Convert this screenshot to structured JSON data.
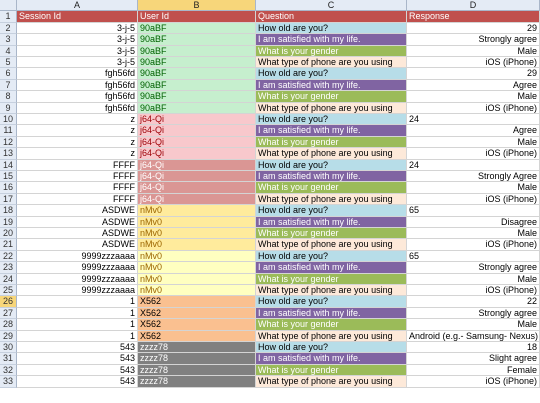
{
  "columns": [
    "A",
    "B",
    "C",
    "D"
  ],
  "headers": [
    "Session Id",
    "User Id",
    "Question",
    "Response"
  ],
  "colors": {
    "header": "#c0504d",
    "q_age": "#b7dde8",
    "q_satisfied": "#8064a2",
    "q_gender": "#9bbb59",
    "q_phone": "#fde9d9",
    "u_90aBF": "#c6efce",
    "u_j64Qi_light": "#f8c8cc",
    "u_j64Qi_dark": "#da9694",
    "u_nMv0": "#ffeb9c",
    "u_9999": "#ffffc0",
    "u_X562": "#fac090",
    "u_zzzz78": "#808080"
  },
  "rows": [
    {
      "n": "2",
      "a": "3-j-5",
      "b": "90aBF",
      "bc": "u_90aBF",
      "c": "How old are you?",
      "cc": "q_age",
      "d": "29",
      "dr": true
    },
    {
      "n": "3",
      "a": "3-j-5",
      "b": "90aBF",
      "bc": "u_90aBF",
      "c": "I am satisfied with my life.",
      "cc": "q_satisfied",
      "d": "Strongly agree",
      "dr": true
    },
    {
      "n": "4",
      "a": "3-j-5",
      "b": "90aBF",
      "bc": "u_90aBF",
      "c": "What is your gender",
      "cc": "q_gender",
      "d": "Male",
      "dr": true
    },
    {
      "n": "5",
      "a": "3-j-5",
      "b": "90aBF",
      "bc": "u_90aBF",
      "c": "What type of phone are you using",
      "cc": "q_phone",
      "d": "iOS (iPhone)",
      "dr": true
    },
    {
      "n": "6",
      "a": "fgh56fd",
      "b": "90aBF",
      "bc": "u_90aBF",
      "c": "How old are you?",
      "cc": "q_age",
      "d": "29",
      "dr": true
    },
    {
      "n": "7",
      "a": "fgh56fd",
      "b": "90aBF",
      "bc": "u_90aBF",
      "c": "I am satisfied with my life.",
      "cc": "q_satisfied",
      "d": "Agree",
      "dr": true
    },
    {
      "n": "8",
      "a": "fgh56fd",
      "b": "90aBF",
      "bc": "u_90aBF",
      "c": "What is your gender",
      "cc": "q_gender",
      "d": "Male",
      "dr": true
    },
    {
      "n": "9",
      "a": "fgh56fd",
      "b": "90aBF",
      "bc": "u_90aBF",
      "c": "What type of phone are you using",
      "cc": "q_phone",
      "d": "iOS (iPhone)",
      "dr": true
    },
    {
      "n": "10",
      "a": "z",
      "b": "j64-Qi",
      "bc": "u_j64Qi_light",
      "c": "How old are you?",
      "cc": "q_age",
      "d": "24",
      "dr": false
    },
    {
      "n": "11",
      "a": "z",
      "b": "j64-Qi",
      "bc": "u_j64Qi_light",
      "c": "I am satisfied with my life.",
      "cc": "q_satisfied",
      "d": "Agree",
      "dr": true
    },
    {
      "n": "12",
      "a": "z",
      "b": "j64-Qi",
      "bc": "u_j64Qi_light",
      "c": "What is your gender",
      "cc": "q_gender",
      "d": "Male",
      "dr": true
    },
    {
      "n": "13",
      "a": "z",
      "b": "j64-Qi",
      "bc": "u_j64Qi_light",
      "c": "What type of phone are you using",
      "cc": "q_phone",
      "d": "iOS (iPhone)",
      "dr": true
    },
    {
      "n": "14",
      "a": "FFFF",
      "b": "j64-Qi",
      "bc": "u_j64Qi_dark",
      "c": "How old are you?",
      "cc": "q_age",
      "d": "24",
      "dr": false
    },
    {
      "n": "15",
      "a": "FFFF",
      "b": "j64-Qi",
      "bc": "u_j64Qi_dark",
      "c": "I am satisfied with my life.",
      "cc": "q_satisfied",
      "d": "Strongly Agree",
      "dr": true
    },
    {
      "n": "16",
      "a": "FFFF",
      "b": "j64-Qi",
      "bc": "u_j64Qi_dark",
      "c": "What is your gender",
      "cc": "q_gender",
      "d": "Male",
      "dr": true
    },
    {
      "n": "17",
      "a": "FFFF",
      "b": "j64-Qi",
      "bc": "u_j64Qi_dark",
      "c": "What type of phone are you using",
      "cc": "q_phone",
      "d": "iOS (iPhone)",
      "dr": true
    },
    {
      "n": "18",
      "a": "ASDWE",
      "b": "nMv0",
      "bc": "u_nMv0",
      "c": "How old are you?",
      "cc": "q_age",
      "d": "65",
      "dr": false
    },
    {
      "n": "19",
      "a": "ASDWE",
      "b": "nMv0",
      "bc": "u_nMv0",
      "c": "I am satisfied with my life.",
      "cc": "q_satisfied",
      "d": "Disagree",
      "dr": true
    },
    {
      "n": "20",
      "a": "ASDWE",
      "b": "nMv0",
      "bc": "u_nMv0",
      "c": "What is your gender",
      "cc": "q_gender",
      "d": "Male",
      "dr": true
    },
    {
      "n": "21",
      "a": "ASDWE",
      "b": "nMv0",
      "bc": "u_nMv0",
      "c": "What type of phone are you using",
      "cc": "q_phone",
      "d": "iOS (iPhone)",
      "dr": true
    },
    {
      "n": "22",
      "a": "9999zzzaaaa",
      "b": "nMv0",
      "bc": "u_9999",
      "c": "How old are you?",
      "cc": "q_age",
      "d": "65",
      "dr": false
    },
    {
      "n": "23",
      "a": "9999zzzaaaa",
      "b": "nMv0",
      "bc": "u_9999",
      "c": "I am satisfied with my life.",
      "cc": "q_satisfied",
      "d": "Strongly agree",
      "dr": true
    },
    {
      "n": "24",
      "a": "9999zzzaaaa",
      "b": "nMv0",
      "bc": "u_9999",
      "c": "What is your gender",
      "cc": "q_gender",
      "d": "Male",
      "dr": true
    },
    {
      "n": "25",
      "a": "9999zzzaaaa",
      "b": "nMv0",
      "bc": "u_9999",
      "c": "What type of phone are you using",
      "cc": "q_phone",
      "d": "iOS (iPhone)",
      "dr": true
    },
    {
      "n": "26",
      "a": "1",
      "b": "X562",
      "bc": "u_X562",
      "c": "How old are you?",
      "cc": "q_age",
      "d": "22",
      "dr": true,
      "sel": true
    },
    {
      "n": "27",
      "a": "1",
      "b": "X562",
      "bc": "u_X562",
      "c": "I am satisfied with my life.",
      "cc": "q_satisfied",
      "d": "Strongly agree",
      "dr": true
    },
    {
      "n": "28",
      "a": "1",
      "b": "X562",
      "bc": "u_X562",
      "c": "What is your gender",
      "cc": "q_gender",
      "d": "Male",
      "dr": true
    },
    {
      "n": "29",
      "a": "1",
      "b": "X562",
      "bc": "u_X562",
      "c": "What type of phone are you using",
      "cc": "q_phone",
      "d": "Android (e.g.- Samsung- Nexus)",
      "dr": true
    },
    {
      "n": "30",
      "a": "543",
      "b": "zzzz78",
      "bc": "u_zzzz78",
      "c": "How old are you?",
      "cc": "q_age",
      "d": "18",
      "dr": true
    },
    {
      "n": "31",
      "a": "543",
      "b": "zzzz78",
      "bc": "u_zzzz78",
      "c": "I am satisfied with my life.",
      "cc": "q_satisfied",
      "d": "Slight agree",
      "dr": true
    },
    {
      "n": "32",
      "a": "543",
      "b": "zzzz78",
      "bc": "u_zzzz78",
      "c": "What is your gender",
      "cc": "q_gender",
      "d": "Female",
      "dr": true
    },
    {
      "n": "33",
      "a": "543",
      "b": "zzzz78",
      "bc": "u_zzzz78",
      "c": "What type of phone are you using",
      "cc": "q_phone",
      "d": "iOS (iPhone)",
      "dr": true
    }
  ],
  "row1_label": "1"
}
